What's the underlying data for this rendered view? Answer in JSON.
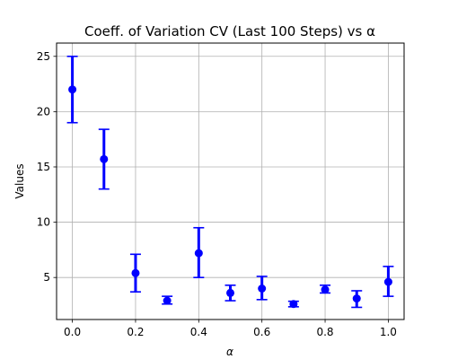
{
  "chart_data": {
    "type": "scatter",
    "title": "Coeff. of Variation CV (Last 100 Steps) vs α",
    "xlabel": "α",
    "ylabel": "Values",
    "xlim": [
      -0.05,
      1.05
    ],
    "ylim": [
      1.2,
      26.2
    ],
    "x_ticks": [
      0.0,
      0.2,
      0.4,
      0.6,
      0.8,
      1.0
    ],
    "x_tick_labels": [
      "0.0",
      "0.2",
      "0.4",
      "0.6",
      "0.8",
      "1.0"
    ],
    "y_ticks": [
      5,
      10,
      15,
      20,
      25
    ],
    "y_tick_labels": [
      "5",
      "10",
      "15",
      "20",
      "25"
    ],
    "grid": true,
    "series": [
      {
        "color": "#0000ff",
        "x": [
          0.0,
          0.1,
          0.2,
          0.3,
          0.4,
          0.5,
          0.6,
          0.7,
          0.8,
          0.9,
          1.0
        ],
        "y": [
          22.0,
          15.7,
          5.4,
          2.9,
          7.2,
          3.6,
          4.0,
          2.6,
          3.9,
          3.1,
          4.6
        ],
        "error_low": [
          19.0,
          13.0,
          3.7,
          2.6,
          5.0,
          2.9,
          3.0,
          2.35,
          3.6,
          2.3,
          3.3
        ],
        "error_high": [
          25.0,
          18.4,
          7.1,
          3.3,
          9.5,
          4.3,
          5.1,
          2.85,
          4.3,
          3.8,
          6.0
        ]
      }
    ]
  }
}
